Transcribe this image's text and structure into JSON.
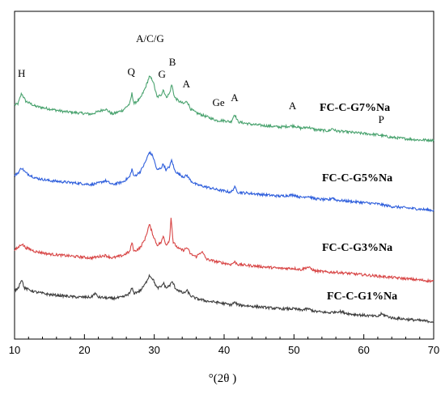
{
  "chart_data": {
    "type": "line",
    "xlabel": "°(2θ )",
    "ylabel": "",
    "xlim": [
      10,
      70
    ],
    "xticks": [
      10,
      20,
      30,
      40,
      50,
      60,
      70
    ],
    "grid": false,
    "legend": "series labels drawn at the right end of each trace",
    "series": [
      {
        "name": "FC-C-G7%Na",
        "color": "#4aa36f",
        "points": [
          [
            10,
            0.22
          ],
          [
            10.5,
            0.23
          ],
          [
            11,
            0.31
          ],
          [
            11.6,
            0.25
          ],
          [
            13,
            0.21
          ],
          [
            15,
            0.19
          ],
          [
            17,
            0.17
          ],
          [
            19,
            0.16
          ],
          [
            21,
            0.15
          ],
          [
            22,
            0.17
          ],
          [
            23,
            0.19
          ],
          [
            24,
            0.15
          ],
          [
            25.5,
            0.18
          ],
          [
            26.5,
            0.23
          ],
          [
            26.8,
            0.31
          ],
          [
            27.1,
            0.23
          ],
          [
            28,
            0.27
          ],
          [
            28.7,
            0.35
          ],
          [
            29.3,
            0.44
          ],
          [
            29.8,
            0.41
          ],
          [
            30.4,
            0.28
          ],
          [
            31,
            0.3
          ],
          [
            31.3,
            0.34
          ],
          [
            31.7,
            0.28
          ],
          [
            32.2,
            0.31
          ],
          [
            32.5,
            0.38
          ],
          [
            32.9,
            0.28
          ],
          [
            33.5,
            0.25
          ],
          [
            34.2,
            0.23
          ],
          [
            34.7,
            0.25
          ],
          [
            35.2,
            0.19
          ],
          [
            36,
            0.16
          ],
          [
            37.5,
            0.13
          ],
          [
            39,
            0.1
          ],
          [
            40,
            0.1
          ],
          [
            41,
            0.09
          ],
          [
            41.5,
            0.15
          ],
          [
            42,
            0.09
          ],
          [
            44,
            0.07
          ],
          [
            46,
            0.06
          ],
          [
            48,
            0.05
          ],
          [
            50,
            0.06
          ],
          [
            51,
            0.04
          ],
          [
            52,
            0.05
          ],
          [
            53,
            0.03
          ],
          [
            55,
            0.02
          ],
          [
            55.5,
            0.04
          ],
          [
            56,
            0.02
          ],
          [
            58,
            0.01
          ],
          [
            60,
            0.0
          ],
          [
            62,
            -0.01
          ],
          [
            64,
            -0.03
          ],
          [
            66,
            -0.04
          ],
          [
            68,
            -0.05
          ],
          [
            70,
            -0.05
          ]
        ]
      },
      {
        "name": "FC-C-G5%Na",
        "color": "#2f5fdc",
        "points": [
          [
            10,
            0.22
          ],
          [
            10.5,
            0.24
          ],
          [
            11,
            0.28
          ],
          [
            11.6,
            0.24
          ],
          [
            13,
            0.2
          ],
          [
            15,
            0.18
          ],
          [
            17,
            0.17
          ],
          [
            19,
            0.16
          ],
          [
            21,
            0.15
          ],
          [
            22,
            0.16
          ],
          [
            23,
            0.18
          ],
          [
            24,
            0.15
          ],
          [
            25.5,
            0.17
          ],
          [
            26.5,
            0.21
          ],
          [
            26.8,
            0.27
          ],
          [
            27.1,
            0.21
          ],
          [
            28,
            0.25
          ],
          [
            28.7,
            0.32
          ],
          [
            29.3,
            0.4
          ],
          [
            29.8,
            0.37
          ],
          [
            30.4,
            0.26
          ],
          [
            31,
            0.28
          ],
          [
            31.3,
            0.31
          ],
          [
            31.7,
            0.26
          ],
          [
            32.2,
            0.29
          ],
          [
            32.5,
            0.34
          ],
          [
            32.9,
            0.26
          ],
          [
            33.5,
            0.23
          ],
          [
            34.2,
            0.21
          ],
          [
            34.7,
            0.22
          ],
          [
            35.2,
            0.18
          ],
          [
            36,
            0.15
          ],
          [
            37.5,
            0.13
          ],
          [
            39,
            0.11
          ],
          [
            40,
            0.1
          ],
          [
            41,
            0.09
          ],
          [
            41.5,
            0.13
          ],
          [
            42,
            0.09
          ],
          [
            44,
            0.08
          ],
          [
            46,
            0.07
          ],
          [
            48,
            0.06
          ],
          [
            50,
            0.07
          ],
          [
            51,
            0.05
          ],
          [
            52,
            0.06
          ],
          [
            53,
            0.04
          ],
          [
            55,
            0.03
          ],
          [
            55.5,
            0.05
          ],
          [
            56,
            0.03
          ],
          [
            58,
            0.02
          ],
          [
            60,
            0.01
          ],
          [
            62,
            0.0
          ],
          [
            64,
            -0.02
          ],
          [
            66,
            -0.03
          ],
          [
            68,
            -0.04
          ],
          [
            70,
            -0.05
          ]
        ]
      },
      {
        "name": "FC-C-G3%Na",
        "color": "#d84646",
        "points": [
          [
            10,
            0.18
          ],
          [
            10.5,
            0.2
          ],
          [
            11,
            0.23
          ],
          [
            11.6,
            0.2
          ],
          [
            13,
            0.17
          ],
          [
            15,
            0.15
          ],
          [
            17,
            0.14
          ],
          [
            19,
            0.13
          ],
          [
            21,
            0.12
          ],
          [
            22,
            0.13
          ],
          [
            23,
            0.14
          ],
          [
            24,
            0.12
          ],
          [
            25.5,
            0.14
          ],
          [
            26.5,
            0.17
          ],
          [
            26.8,
            0.24
          ],
          [
            27.1,
            0.17
          ],
          [
            28,
            0.2
          ],
          [
            28.7,
            0.27
          ],
          [
            29.3,
            0.38
          ],
          [
            29.8,
            0.3
          ],
          [
            30.4,
            0.22
          ],
          [
            31,
            0.24
          ],
          [
            31.3,
            0.29
          ],
          [
            31.7,
            0.22
          ],
          [
            32.2,
            0.26
          ],
          [
            32.4,
            0.44
          ],
          [
            32.7,
            0.24
          ],
          [
            33.5,
            0.19
          ],
          [
            34.2,
            0.18
          ],
          [
            34.7,
            0.2
          ],
          [
            35.2,
            0.15
          ],
          [
            36,
            0.13
          ],
          [
            36.8,
            0.17
          ],
          [
            37.5,
            0.11
          ],
          [
            39,
            0.09
          ],
          [
            40,
            0.08
          ],
          [
            41,
            0.07
          ],
          [
            41.5,
            0.09
          ],
          [
            42,
            0.07
          ],
          [
            44,
            0.06
          ],
          [
            46,
            0.05
          ],
          [
            48,
            0.04
          ],
          [
            50,
            0.04
          ],
          [
            51,
            0.03
          ],
          [
            52,
            0.05
          ],
          [
            53,
            0.02
          ],
          [
            55,
            0.01
          ],
          [
            56,
            0.01
          ],
          [
            58,
            0.0
          ],
          [
            60,
            -0.01
          ],
          [
            62,
            -0.02
          ],
          [
            64,
            -0.03
          ],
          [
            66,
            -0.04
          ],
          [
            68,
            -0.05
          ],
          [
            70,
            -0.06
          ]
        ]
      },
      {
        "name": "FC-C-G1%Na",
        "color": "#3d3d3d",
        "points": [
          [
            10,
            0.18
          ],
          [
            10.5,
            0.2
          ],
          [
            11,
            0.27
          ],
          [
            11.4,
            0.2
          ],
          [
            13,
            0.17
          ],
          [
            15,
            0.15
          ],
          [
            17,
            0.14
          ],
          [
            19,
            0.13
          ],
          [
            21,
            0.13
          ],
          [
            21.5,
            0.16
          ],
          [
            22,
            0.13
          ],
          [
            24,
            0.12
          ],
          [
            25.5,
            0.13
          ],
          [
            26.5,
            0.16
          ],
          [
            26.8,
            0.2
          ],
          [
            27.1,
            0.16
          ],
          [
            28,
            0.18
          ],
          [
            28.7,
            0.23
          ],
          [
            29.3,
            0.3
          ],
          [
            29.8,
            0.27
          ],
          [
            30.4,
            0.2
          ],
          [
            31,
            0.21
          ],
          [
            31.3,
            0.24
          ],
          [
            31.7,
            0.2
          ],
          [
            32.2,
            0.22
          ],
          [
            32.6,
            0.25
          ],
          [
            33,
            0.2
          ],
          [
            33.5,
            0.18
          ],
          [
            34.2,
            0.16
          ],
          [
            34.7,
            0.18
          ],
          [
            35.2,
            0.14
          ],
          [
            36,
            0.12
          ],
          [
            37.5,
            0.1
          ],
          [
            39,
            0.09
          ],
          [
            40,
            0.08
          ],
          [
            41,
            0.07
          ],
          [
            41.5,
            0.09
          ],
          [
            42,
            0.07
          ],
          [
            44,
            0.06
          ],
          [
            46,
            0.05
          ],
          [
            48,
            0.04
          ],
          [
            50,
            0.04
          ],
          [
            51,
            0.03
          ],
          [
            52,
            0.04
          ],
          [
            53,
            0.02
          ],
          [
            55,
            0.01
          ],
          [
            56.5,
            0.02
          ],
          [
            58,
            0.0
          ],
          [
            60,
            -0.01
          ],
          [
            62,
            -0.02
          ],
          [
            62.5,
            0.0
          ],
          [
            64,
            -0.03
          ],
          [
            66,
            -0.04
          ],
          [
            68,
            -0.05
          ],
          [
            70,
            -0.06
          ]
        ]
      }
    ],
    "annotations": [
      {
        "text": "H",
        "x": 11
      },
      {
        "text": "Q",
        "x": 26.7
      },
      {
        "text": "A/C/G",
        "x": 29.4
      },
      {
        "text": "G",
        "x": 31.1
      },
      {
        "text": "B",
        "x": 32.6
      },
      {
        "text": "A",
        "x": 34.6
      },
      {
        "text": "Ge",
        "x": 39.2
      },
      {
        "text": "A",
        "x": 41.5
      },
      {
        "text": "A",
        "x": 49.8
      },
      {
        "text": "P",
        "x": 62.5
      }
    ]
  }
}
